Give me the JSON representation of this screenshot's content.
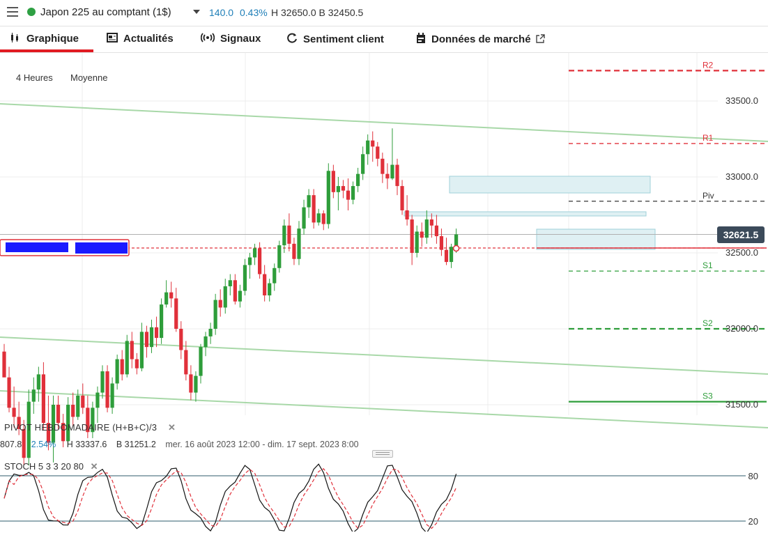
{
  "header": {
    "instrument": "Japon 225 au comptant (1$)",
    "change_abs": "140.0",
    "change_pct": "0.43%",
    "high_low": "H 32650.0 B 32450.5"
  },
  "tabs": [
    {
      "label": "Graphique",
      "icon": "candlestick-icon",
      "active": true
    },
    {
      "label": "Actualités",
      "icon": "news-icon"
    },
    {
      "label": "Signaux",
      "icon": "signal-icon"
    },
    {
      "label": "Sentiment client",
      "icon": "sentiment-icon"
    },
    {
      "label": "Données de marché",
      "icon": "calendar-icon",
      "external": "external-link-icon"
    }
  ],
  "chart": {
    "timeframe": "4 Heures",
    "chart_style": "Moyenne",
    "price_badge": "32621.5",
    "pivot_caption": "PIVOT HEBDOMADAIRE (H+B+C)/3",
    "pivot_stats": {
      "value": "807.8",
      "pct": "2.54%",
      "high": "H 33337.6",
      "low": "B 31251.2",
      "range": "mer. 16 août 2023 12:00 - dim. 17 sept. 2023 8:00"
    },
    "stoch_caption": "STOCH 5 3 3 20 80",
    "colors": {
      "bull": "#2e9d3a",
      "bear": "#e0303a",
      "accent": "#1f7fb8",
      "channel": "#a8d8a8",
      "zone": "#dff0f3"
    }
  },
  "chart_data": {
    "type": "candlestick",
    "y_axis": {
      "ticks": [
        33500.0,
        33000.0,
        32500.0,
        32000.0,
        31500.0
      ],
      "tick_labels": [
        "33500.0",
        "33000.0",
        "32500.0",
        "32000.0",
        "31500.0"
      ]
    },
    "pivot_levels": [
      {
        "name": "R2",
        "value": 33700,
        "color": "#e0303a",
        "style": "dashed-bold"
      },
      {
        "name": "R1",
        "value": 33220,
        "color": "#e0303a",
        "style": "dashed"
      },
      {
        "name": "Piv",
        "value": 32840,
        "color": "#333333",
        "style": "dashed"
      },
      {
        "name": "S1",
        "value": 32380,
        "color": "#2e9d3a",
        "style": "dashed"
      },
      {
        "name": "S2",
        "value": 32000,
        "color": "#2e9d3a",
        "style": "dashed-bold"
      },
      {
        "name": "S3",
        "value": 31520,
        "color": "#2e9d3a",
        "style": "solid"
      }
    ],
    "current_price": 32621.5,
    "candles": [
      [
        31850,
        31900,
        31700,
        31680
      ],
      [
        31680,
        31750,
        31450,
        31480
      ],
      [
        31480,
        31620,
        31350,
        31420
      ],
      [
        31420,
        31520,
        31300,
        31340
      ],
      [
        31340,
        31400,
        31100,
        31150
      ],
      [
        31150,
        31600,
        31100,
        31520
      ],
      [
        31520,
        31680,
        31440,
        31600
      ],
      [
        31600,
        31750,
        31520,
        31700
      ],
      [
        31700,
        31780,
        31330,
        31380
      ],
      [
        31380,
        31560,
        31200,
        31250
      ],
      [
        31250,
        31560,
        31120,
        31500
      ],
      [
        31500,
        31560,
        31340,
        31380
      ],
      [
        31380,
        31440,
        31220,
        31260
      ],
      [
        31260,
        31550,
        31230,
        31500
      ],
      [
        31500,
        31580,
        31360,
        31420
      ],
      [
        31420,
        31600,
        31400,
        31560
      ],
      [
        31560,
        31640,
        31440,
        31480
      ],
      [
        31480,
        31560,
        31280,
        31320
      ],
      [
        31320,
        31520,
        31280,
        31480
      ],
      [
        31480,
        31620,
        31380,
        31580
      ],
      [
        31580,
        31760,
        31540,
        31720
      ],
      [
        31720,
        31760,
        31450,
        31480
      ],
      [
        31480,
        31680,
        31440,
        31640
      ],
      [
        31640,
        31830,
        31600,
        31800
      ],
      [
        31800,
        31860,
        31660,
        31700
      ],
      [
        31700,
        31960,
        31680,
        31920
      ],
      [
        31920,
        31980,
        31740,
        31800
      ],
      [
        31800,
        31840,
        31700,
        31740
      ],
      [
        31740,
        32040,
        31720,
        31980
      ],
      [
        31980,
        32020,
        31810,
        31880
      ],
      [
        31880,
        32060,
        31840,
        32010
      ],
      [
        32010,
        32080,
        31880,
        31940
      ],
      [
        31940,
        32200,
        31900,
        32160
      ],
      [
        32160,
        32320,
        32140,
        32240
      ],
      [
        32240,
        32310,
        32140,
        32200
      ],
      [
        32200,
        32270,
        31980,
        32000
      ],
      [
        32000,
        32050,
        31800,
        31860
      ],
      [
        31860,
        31920,
        31660,
        31700
      ],
      [
        31700,
        31760,
        31530,
        31580
      ],
      [
        31580,
        31720,
        31520,
        31690
      ],
      [
        31690,
        31900,
        31640,
        31880
      ],
      [
        31880,
        31980,
        31820,
        31950
      ],
      [
        31950,
        32040,
        31900,
        32000
      ],
      [
        32000,
        32230,
        31960,
        32190
      ],
      [
        32190,
        32260,
        32080,
        32140
      ],
      [
        32140,
        32330,
        32100,
        32280
      ],
      [
        32280,
        32360,
        32220,
        32320
      ],
      [
        32320,
        32360,
        32160,
        32180
      ],
      [
        32180,
        32290,
        32140,
        32250
      ],
      [
        32250,
        32460,
        32220,
        32420
      ],
      [
        32420,
        32500,
        32330,
        32470
      ],
      [
        32470,
        32560,
        32420,
        32530
      ],
      [
        32530,
        32570,
        32330,
        32360
      ],
      [
        32360,
        32420,
        32180,
        32220
      ],
      [
        32220,
        32330,
        32180,
        32300
      ],
      [
        32300,
        32430,
        32250,
        32400
      ],
      [
        32400,
        32580,
        32370,
        32550
      ],
      [
        32550,
        32720,
        32500,
        32680
      ],
      [
        32680,
        32760,
        32510,
        32560
      ],
      [
        32560,
        32600,
        32420,
        32460
      ],
      [
        32460,
        32710,
        32420,
        32660
      ],
      [
        32660,
        32850,
        32620,
        32800
      ],
      [
        32800,
        32920,
        32730,
        32880
      ],
      [
        32880,
        32920,
        32660,
        32700
      ],
      [
        32700,
        32790,
        32680,
        32760
      ],
      [
        32760,
        32780,
        32650,
        32690
      ],
      [
        32690,
        33090,
        32660,
        33040
      ],
      [
        33040,
        33080,
        32860,
        32900
      ],
      [
        32900,
        33000,
        32780,
        32940
      ],
      [
        32940,
        32980,
        32860,
        32910
      ],
      [
        32910,
        32990,
        32780,
        32850
      ],
      [
        32850,
        32970,
        32820,
        32940
      ],
      [
        32940,
        33060,
        32900,
        33020
      ],
      [
        33020,
        33200,
        32980,
        33150
      ],
      [
        33150,
        33280,
        33080,
        33240
      ],
      [
        33240,
        33300,
        33100,
        33200
      ],
      [
        33200,
        33230,
        33070,
        33120
      ],
      [
        33120,
        33160,
        32960,
        33020
      ],
      [
        33020,
        33090,
        32920,
        32990
      ],
      [
        32990,
        33320,
        32980,
        33080
      ],
      [
        33080,
        33120,
        32880,
        32940
      ],
      [
        32940,
        32980,
        32750,
        32780
      ],
      [
        32780,
        32880,
        32680,
        32720
      ],
      [
        32720,
        32750,
        32420,
        32500
      ],
      [
        32500,
        32680,
        32470,
        32640
      ],
      [
        32640,
        32700,
        32540,
        32600
      ],
      [
        32600,
        32780,
        32560,
        32720
      ],
      [
        32720,
        32760,
        32600,
        32680
      ],
      [
        32680,
        32750,
        32560,
        32610
      ],
      [
        32610,
        32660,
        32480,
        32520
      ],
      [
        32520,
        32600,
        32420,
        32440
      ],
      [
        32440,
        32560,
        32400,
        32540
      ],
      [
        32540,
        32660,
        32500,
        32621.5
      ]
    ]
  }
}
